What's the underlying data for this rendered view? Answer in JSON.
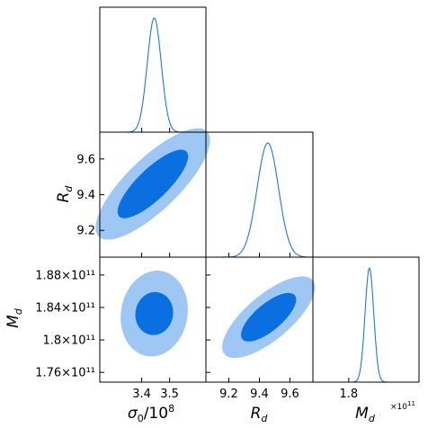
{
  "chart_data": {
    "type": "triangle-corner",
    "parameters": [
      {
        "key": "sigma0",
        "label": "σ₀/10⁸",
        "range": [
          3.25,
          3.63
        ],
        "ticks": [
          3.4,
          3.5
        ],
        "tick_labels": [
          "3.4",
          "3.5"
        ]
      },
      {
        "key": "Rd",
        "label": "R_d",
        "range": [
          9.05,
          9.75
        ],
        "ticks": [
          9.2,
          9.4,
          9.6
        ],
        "tick_labels": [
          "9.2",
          "9.4",
          "9.6"
        ]
      },
      {
        "key": "Md",
        "label": "M_d",
        "range": [
          174800000000.0,
          190200000000.0
        ],
        "ticks": [
          176000000000.0,
          180000000000.0,
          184000000000.0,
          188000000000.0
        ],
        "tick_labels": [
          "1.76×10¹¹",
          "1.8×10¹¹",
          "1.84×10¹¹",
          "1.88×10¹¹"
        ],
        "x_tick_labels": [
          "1.8"
        ],
        "x_ticks": [
          180000000000.0
        ],
        "x_exponent_label": "×10¹¹"
      }
    ],
    "marginals": [
      {
        "param": "sigma0",
        "mean": 3.445,
        "sd": 0.025
      },
      {
        "param": "Rd",
        "mean": 9.455,
        "sd": 0.07
      },
      {
        "param": "Md",
        "mean": 183000000000.0,
        "sd": 630000000.0
      }
    ],
    "contours": [
      {
        "x": "sigma0",
        "y": "Rd",
        "center": [
          3.44,
          9.46
        ],
        "inner": {
          "angle_deg": -44,
          "semi_major": 52,
          "semi_minor": 17
        },
        "outer": {
          "angle_deg": -44,
          "semi_major": 84,
          "semi_minor": 29
        }
      },
      {
        "x": "sigma0",
        "y": "Md",
        "center": [
          3.445,
          183250000000.0
        ],
        "inner": {
          "angle_deg": -80,
          "semi_major": 24,
          "semi_minor": 21
        },
        "outer": {
          "angle_deg": -80,
          "semi_major": 48,
          "semi_minor": 37
        }
      },
      {
        "x": "Rd",
        "y": "Md",
        "center": [
          9.46,
          182800000000.0
        ],
        "inner": {
          "angle_deg": -40,
          "semi_major": 38,
          "semi_minor": 15
        },
        "outer": {
          "angle_deg": -40,
          "semi_major": 64,
          "semi_minor": 25
        }
      }
    ],
    "colors": {
      "line": "#1f77e8",
      "inner_fill": "#0a6fe0",
      "outer_fill": "#9ec7f4"
    }
  }
}
